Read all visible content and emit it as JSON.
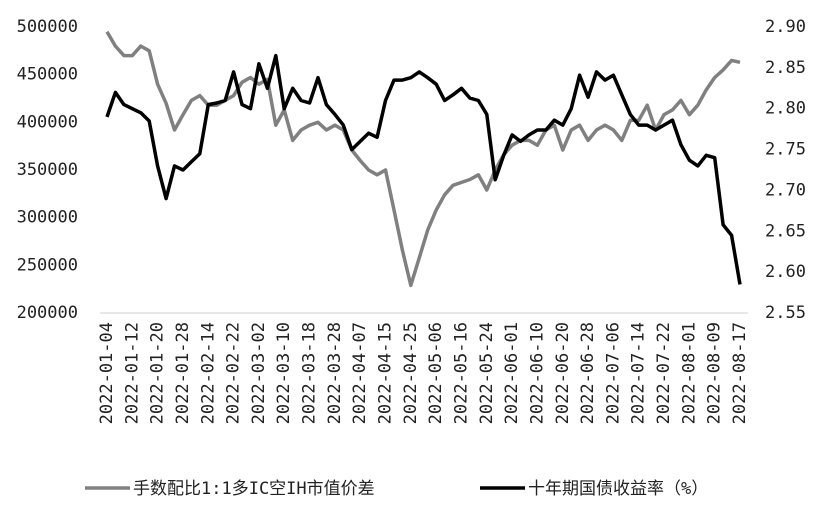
{
  "chart_data": {
    "type": "line",
    "categories": [
      "2022-01-04",
      null,
      null,
      "2022-01-12",
      null,
      null,
      "2022-01-20",
      null,
      null,
      "2022-01-28",
      null,
      null,
      "2022-02-14",
      null,
      null,
      "2022-02-22",
      null,
      null,
      "2022-03-02",
      null,
      null,
      "2022-03-10",
      null,
      null,
      "2022-03-18",
      null,
      null,
      "2022-03-28",
      null,
      null,
      "2022-04-07",
      null,
      null,
      "2022-04-15",
      null,
      null,
      "2022-04-25",
      null,
      null,
      "2022-05-06",
      null,
      null,
      "2022-05-16",
      null,
      null,
      "2022-05-24",
      null,
      null,
      "2022-06-01",
      null,
      null,
      "2022-06-10",
      null,
      null,
      "2022-06-20",
      null,
      null,
      "2022-06-28",
      null,
      null,
      "2022-07-06",
      null,
      null,
      "2022-07-14",
      null,
      null,
      "2022-07-22",
      null,
      null,
      "2022-08-01",
      null,
      null,
      "2022-08-09",
      null,
      null,
      "2022-08-17"
    ],
    "series": [
      {
        "name": "手数配比1:1多IC空IH市值价差",
        "color": "#808080",
        "values": [
          495000,
          480000,
          470000,
          470000,
          480000,
          475000,
          440000,
          420000,
          392000,
          408000,
          423000,
          428000,
          418000,
          418000,
          423000,
          428000,
          442000,
          447000,
          440000,
          445000,
          397000,
          413000,
          381000,
          392000,
          397000,
          400000,
          392000,
          397000,
          392000,
          371000,
          360000,
          350000,
          345000,
          350000,
          308000,
          266000,
          229000,
          258000,
          287000,
          308000,
          324000,
          334000,
          337000,
          340000,
          345000,
          329000,
          350000,
          366000,
          376000,
          381000,
          381000,
          376000,
          392000,
          397000,
          371000,
          392000,
          397000,
          381000,
          392000,
          397000,
          392000,
          381000,
          402000,
          402000,
          418000,
          392000,
          408000,
          413000,
          423000,
          408000,
          418000,
          434000,
          447000,
          455000,
          465000,
          463000
        ]
      },
      {
        "name": "十年期国债收益率（%）",
        "color": "#000000",
        "axis": "y2",
        "values": [
          2.79,
          2.82,
          2.805,
          2.8,
          2.795,
          2.785,
          2.73,
          2.69,
          2.73,
          2.725,
          2.735,
          2.745,
          2.805,
          2.807,
          2.81,
          2.845,
          2.805,
          2.8,
          2.855,
          2.825,
          2.865,
          2.8,
          2.825,
          2.81,
          2.807,
          2.838,
          2.805,
          2.793,
          2.78,
          2.75,
          2.76,
          2.77,
          2.765,
          2.81,
          2.835,
          2.835,
          2.838,
          2.845,
          2.838,
          2.83,
          2.81,
          2.817,
          2.825,
          2.813,
          2.81,
          2.793,
          2.713,
          2.743,
          2.768,
          2.76,
          2.768,
          2.774,
          2.774,
          2.786,
          2.78,
          2.8,
          2.841,
          2.814,
          2.845,
          2.835,
          2.841,
          2.817,
          2.793,
          2.78,
          2.78,
          2.774,
          2.78,
          2.786,
          2.756,
          2.737,
          2.73,
          2.743,
          2.74,
          2.658,
          2.645,
          2.585
        ]
      }
    ],
    "ylim": [
      200000,
      500000
    ],
    "yticks": [
      200000,
      250000,
      300000,
      350000,
      400000,
      450000,
      500000
    ],
    "y2lim": [
      2.55,
      2.9
    ],
    "y2ticks": [
      {
        "value": 2.55,
        "label": "2.55"
      },
      {
        "value": 2.6,
        "label": "2.60"
      },
      {
        "value": 2.65,
        "label": "2.65"
      },
      {
        "value": 2.7,
        "label": "2.70"
      },
      {
        "value": 2.75,
        "label": "2.75"
      },
      {
        "value": 2.8,
        "label": "2.80"
      },
      {
        "value": 2.85,
        "label": "2.85"
      },
      {
        "value": 2.9,
        "label": "2.90"
      }
    ],
    "grid": false
  }
}
